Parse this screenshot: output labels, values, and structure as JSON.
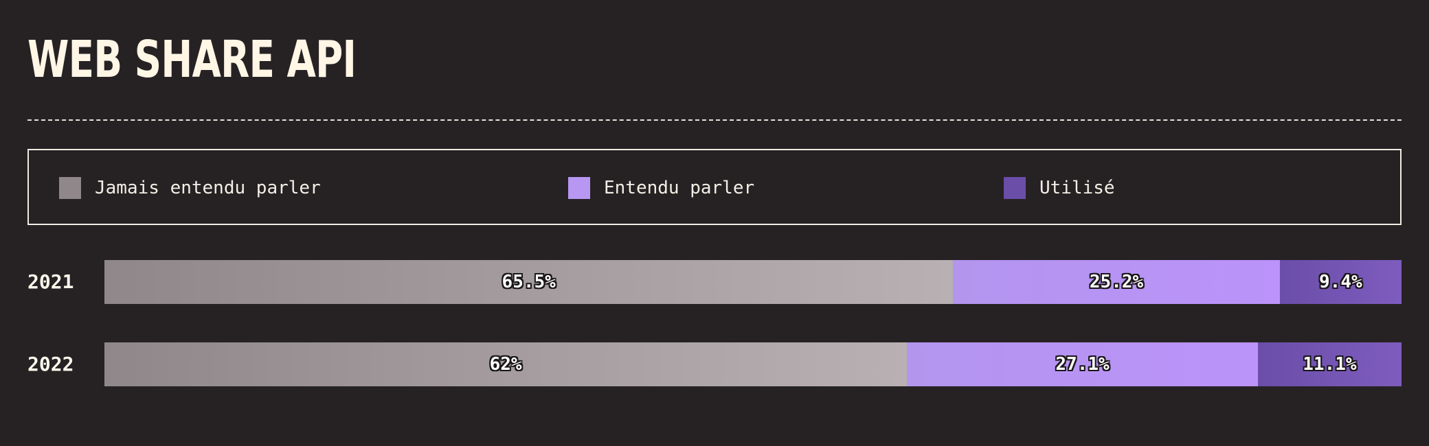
{
  "header": {
    "title": "WEB SHARE API"
  },
  "legend": {
    "items": [
      {
        "label": "Jamais entendu parler",
        "color": "#8f8789"
      },
      {
        "label": "Entendu parler",
        "color": "#b797f2"
      },
      {
        "label": "Utilisé",
        "color": "#6a4ea8"
      }
    ]
  },
  "chart_data": {
    "type": "bar",
    "orientation": "horizontal",
    "stacked": "100%",
    "title": "WEB SHARE API",
    "categories": [
      "2021",
      "2022"
    ],
    "series": [
      {
        "name": "Jamais entendu parler",
        "values": [
          65.5,
          62
        ],
        "labels": [
          "65.5%",
          "62%"
        ],
        "gradient": [
          "#8f8789",
          "#b8b0b2"
        ]
      },
      {
        "name": "Entendu parler",
        "values": [
          25.2,
          27.1
        ],
        "labels": [
          "25.2%",
          "27.1%"
        ],
        "gradient": [
          "#b395ee",
          "#bb93fa"
        ]
      },
      {
        "name": "Utilisé",
        "values": [
          9.4,
          11.1
        ],
        "labels": [
          "9.4%",
          "11.1%"
        ],
        "gradient": [
          "#6a4ea8",
          "#7e5cbe"
        ]
      }
    ],
    "xlim": [
      0,
      100
    ],
    "legend_position": "top",
    "grid": false
  }
}
